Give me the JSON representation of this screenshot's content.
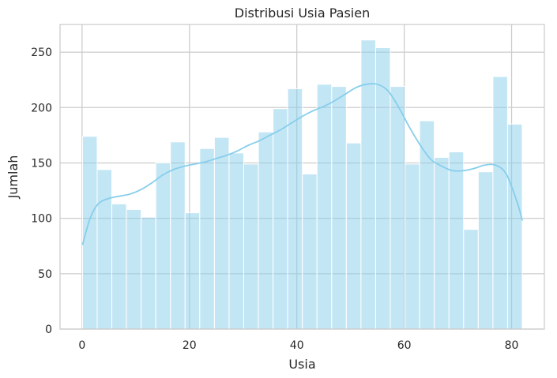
{
  "chart_data": {
    "type": "bar",
    "title": "Distribusi Usia Pasien",
    "xlabel": "Usia",
    "ylabel": "Jumlah",
    "xlim": [
      -4.1,
      86.1
    ],
    "ylim": [
      0,
      275
    ],
    "xticks": [
      "0",
      "20",
      "40",
      "60",
      "80"
    ],
    "yticks": [
      "0",
      "50",
      "100",
      "150",
      "200",
      "250"
    ],
    "grid": true,
    "bin_start": 0.08,
    "bin_width": 2.73,
    "values": [
      174,
      144,
      113,
      108,
      101,
      150,
      169,
      105,
      163,
      173,
      159,
      149,
      178,
      199,
      217,
      140,
      221,
      219,
      168,
      261,
      254,
      219,
      149,
      188,
      155,
      160,
      90,
      142,
      228,
      185
    ],
    "kde_line": {
      "x": [
        0.08,
        1.5,
        3,
        5,
        7,
        9,
        11,
        13,
        15,
        17,
        19,
        21,
        23,
        25,
        27,
        29,
        31,
        33,
        35,
        37,
        39,
        41,
        43,
        45,
        47,
        49,
        51,
        53,
        55,
        57,
        59,
        61,
        63,
        65,
        67,
        69,
        71,
        73,
        75,
        77,
        79,
        81,
        82
      ],
      "y": [
        76,
        100,
        113,
        118,
        120,
        122,
        126,
        132,
        139,
        144,
        147,
        149,
        151,
        154,
        157,
        161,
        166,
        170,
        175,
        180,
        186,
        192,
        197,
        201,
        206,
        212,
        218,
        221,
        221,
        215,
        200,
        182,
        166,
        153,
        147,
        143,
        143,
        145,
        148,
        148,
        140,
        115,
        98
      ]
    },
    "colors": {
      "bar_fill": "#87ceeb",
      "line": "#87ceeb",
      "grid": "#cccccc",
      "axes_edge": "#cccccc"
    }
  }
}
